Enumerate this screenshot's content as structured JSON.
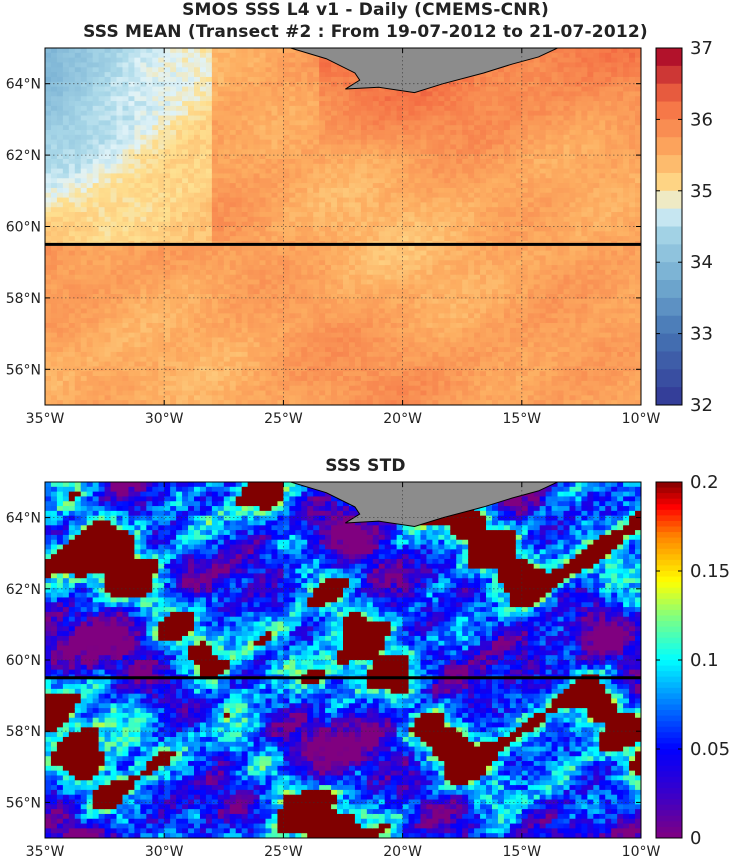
{
  "chart_data": [
    {
      "type": "heatmap",
      "title_line1": "SMOS SSS L4 v1 - Daily (CMEMS-CNR)",
      "title_line2": "SSS MEAN (Transect #2 : From 19-07-2012 to 21-07-2012)",
      "x_ticks": [
        "35°W",
        "30°W",
        "25°W",
        "20°W",
        "15°W",
        "10°W"
      ],
      "x_tick_values": [
        -35,
        -30,
        -25,
        -20,
        -15,
        -10
      ],
      "y_ticks": [
        "64°N",
        "62°N",
        "60°N",
        "58°N",
        "56°N"
      ],
      "y_tick_values": [
        64,
        62,
        60,
        58,
        56
      ],
      "xlim": [
        -35,
        -10
      ],
      "ylim": [
        55,
        65
      ],
      "colorbar": {
        "min": 32,
        "max": 37,
        "ticks": [
          "37",
          "36",
          "35",
          "34",
          "33",
          "32"
        ],
        "tick_values": [
          37,
          36,
          35,
          34,
          33,
          32
        ],
        "colormap": "blue-white-red"
      },
      "transect_lat": 59.5,
      "grid": true
    },
    {
      "type": "heatmap",
      "title": "SSS STD",
      "x_ticks": [
        "35°W",
        "30°W",
        "25°W",
        "20°W",
        "15°W",
        "10°W"
      ],
      "x_tick_values": [
        -35,
        -30,
        -25,
        -20,
        -15,
        -10
      ],
      "y_ticks": [
        "64°N",
        "62°N",
        "60°N",
        "58°N",
        "56°N"
      ],
      "y_tick_values": [
        64,
        62,
        60,
        58,
        56
      ],
      "xlim": [
        -35,
        -10
      ],
      "ylim": [
        55,
        65
      ],
      "colorbar": {
        "min": 0,
        "max": 0.2,
        "ticks": [
          "0.2",
          "0.15",
          "0.1",
          "0.05",
          "0"
        ],
        "tick_values": [
          0.2,
          0.15,
          0.1,
          0.05,
          0
        ],
        "colormap": "jet"
      },
      "transect_lat": 59.5,
      "grid": true
    }
  ],
  "colors": {
    "land": "#8c8c8c",
    "transect": "#000000"
  }
}
